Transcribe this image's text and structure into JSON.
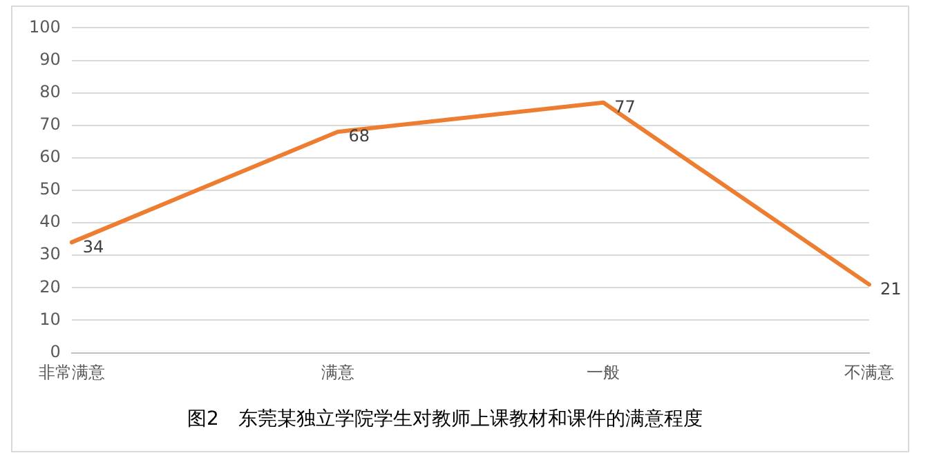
{
  "chart_data": {
    "type": "line",
    "title": "图2　东莞某独立学院学生对教师上课教材和课件的满意程度",
    "categories": [
      "非常满意",
      "满意",
      "一般",
      "不满意"
    ],
    "series": [
      {
        "color": "#ed7d31",
        "values": [
          34,
          68,
          77,
          21
        ]
      }
    ],
    "ylim": [
      0,
      100
    ],
    "yticks": [
      0,
      10,
      20,
      30,
      40,
      50,
      60,
      70,
      80,
      90,
      100
    ],
    "grid": "y",
    "legend": false,
    "marker": "none",
    "line_style": "solid",
    "data_labels": true
  }
}
